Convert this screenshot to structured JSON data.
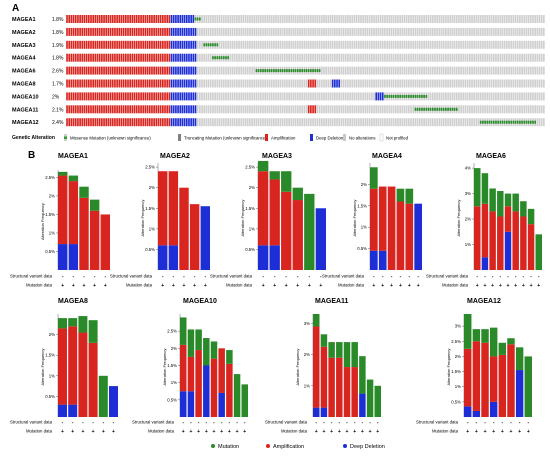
{
  "panel_a": {
    "letter": "A",
    "genes": [
      {
        "name": "MAGEA1",
        "pct": "1.8%",
        "pattern": [
          {
            "t": "amp",
            "n": 48
          },
          {
            "t": "del",
            "n": 11
          },
          {
            "t": "mut",
            "n": 3
          }
        ]
      },
      {
        "name": "MAGEA2",
        "pct": "1.8%",
        "pattern": [
          {
            "t": "amp",
            "n": 48
          },
          {
            "t": "del",
            "n": 12
          }
        ]
      },
      {
        "name": "MAGEA3",
        "pct": "1.9%",
        "pattern": [
          {
            "t": "amp",
            "n": 48
          },
          {
            "t": "del",
            "n": 12
          },
          {
            "t": "na",
            "n": 3
          },
          {
            "t": "mut",
            "n": 7
          }
        ]
      },
      {
        "name": "MAGEA4",
        "pct": "1.8%",
        "pattern": [
          {
            "t": "amp",
            "n": 48
          },
          {
            "t": "del",
            "n": 12
          },
          {
            "t": "na",
            "n": 7
          },
          {
            "t": "mut",
            "n": 8
          }
        ]
      },
      {
        "name": "MAGEA6",
        "pct": "2.6%",
        "pattern": [
          {
            "t": "amp",
            "n": 48
          },
          {
            "t": "del",
            "n": 12
          },
          {
            "t": "na",
            "n": 27
          },
          {
            "t": "mut",
            "n": 30
          }
        ]
      },
      {
        "name": "MAGEA8",
        "pct": "1.7%",
        "pattern": [
          {
            "t": "amp",
            "n": 48
          },
          {
            "t": "del",
            "n": 12
          },
          {
            "t": "na",
            "n": 51
          },
          {
            "t": "amp",
            "n": 4
          },
          {
            "t": "na",
            "n": 7
          },
          {
            "t": "del",
            "n": 4
          }
        ]
      },
      {
        "name": "MAGEA10",
        "pct": "2%",
        "pattern": [
          {
            "t": "amp",
            "n": 48
          },
          {
            "t": "del",
            "n": 12
          },
          {
            "t": "na",
            "n": 82
          },
          {
            "t": "del",
            "n": 4
          },
          {
            "t": "mut",
            "n": 20
          }
        ]
      },
      {
        "name": "MAGEA11",
        "pct": "2.1%",
        "pattern": [
          {
            "t": "amp",
            "n": 48
          },
          {
            "t": "del",
            "n": 12
          },
          {
            "t": "na",
            "n": 51
          },
          {
            "t": "amp",
            "n": 4
          },
          {
            "t": "na",
            "n": 45
          },
          {
            "t": "mut",
            "n": 20
          }
        ]
      },
      {
        "name": "MAGEA12",
        "pct": "2.4%",
        "pattern": [
          {
            "t": "amp",
            "n": 48
          },
          {
            "t": "del",
            "n": 12
          },
          {
            "t": "na",
            "n": 130
          },
          {
            "t": "mut",
            "n": 26
          }
        ]
      }
    ],
    "legend_title": "Genetic Alteration",
    "legend": [
      {
        "label": "Missense Mutation (unknown significance)",
        "color": "#2d9e2d"
      },
      {
        "label": "Truncating Mutation (unknown significance)",
        "color": "#808080"
      },
      {
        "label": "Amplification",
        "color": "#e0201f"
      },
      {
        "label": "Deep Deletion",
        "color": "#1f2fd1"
      },
      {
        "label": "No alterations",
        "color": "#c8c8c8"
      },
      {
        "label": "Not profiled",
        "color": "#ffffff"
      }
    ]
  },
  "panel_b": {
    "letter": "B",
    "ylabel": "Alteration Frequency",
    "row_labels": [
      "Structural variant data",
      "Mutation data"
    ],
    "bottom_legend": [
      {
        "label": "Mutation",
        "color": "#2a8a2a"
      },
      {
        "label": "Amplification",
        "color": "#d9251f"
      },
      {
        "label": "Deep Deletion",
        "color": "#1e2ed6"
      }
    ]
  },
  "colors": {
    "mutation": "#2a8a2a",
    "amplification": "#d9251f",
    "deletion": "#1e2ed6",
    "na": "#cfcfcf"
  },
  "chart_data": [
    {
      "type": "bar",
      "title": "MAGEA1",
      "ylim": [
        0,
        2.7
      ],
      "yticks": [
        0.5,
        1,
        1.5,
        2,
        2.5
      ],
      "bars": [
        {
          "d": 0.7,
          "a": 1.85,
          "m": 0.1
        },
        {
          "d": 0.7,
          "a": 1.7,
          "m": 0.15
        },
        {
          "d": 0,
          "a": 1.95,
          "m": 0.3
        },
        {
          "d": 0,
          "a": 1.6,
          "m": 0.3
        },
        {
          "d": 0,
          "a": 1.5,
          "m": 0
        }
      ],
      "sv": [
        "-",
        "-",
        "-",
        "-",
        "-"
      ],
      "mut": [
        "+",
        "+",
        "+",
        "+",
        "+"
      ]
    },
    {
      "type": "bar",
      "title": "MAGEA2",
      "ylim": [
        0,
        2.6
      ],
      "yticks": [
        0.5,
        1,
        1.5,
        2,
        2.5
      ],
      "bars": [
        {
          "d": 0.6,
          "a": 1.8,
          "m": 0
        },
        {
          "d": 0.6,
          "a": 1.8,
          "m": 0
        },
        {
          "d": 0,
          "a": 2.0,
          "m": 0
        },
        {
          "d": 0,
          "a": 1.6,
          "m": 0
        },
        {
          "d": 1.55,
          "a": 0,
          "m": 0
        }
      ],
      "sv": [
        "-",
        "-",
        "-",
        "-",
        "-"
      ],
      "mut": [
        "+",
        "+",
        "+",
        "+",
        "+"
      ]
    },
    {
      "type": "bar",
      "title": "MAGEA3",
      "ylim": [
        0,
        2.6
      ],
      "yticks": [
        0.5,
        1,
        1.5,
        2,
        2.5
      ],
      "bars": [
        {
          "d": 0.6,
          "a": 1.8,
          "m": 0.25
        },
        {
          "d": 0.6,
          "a": 1.6,
          "m": 0.2
        },
        {
          "d": 0,
          "a": 1.9,
          "m": 0.5
        },
        {
          "d": 0,
          "a": 1.7,
          "m": 0.3
        },
        {
          "d": 0,
          "a": 0,
          "m": 1.85
        },
        {
          "d": 1.5,
          "a": 0,
          "m": 0
        }
      ],
      "sv": [
        "-",
        "-",
        "-",
        "-",
        "-",
        "-"
      ],
      "mut": [
        "+",
        "+",
        "+",
        "+",
        "+",
        "+"
      ]
    },
    {
      "type": "bar",
      "title": "MAGEA4",
      "ylim": [
        0,
        2.5
      ],
      "yticks": [
        0.5,
        1,
        1.5,
        2
      ],
      "bars": [
        {
          "d": 0.45,
          "a": 1.45,
          "m": 0.5
        },
        {
          "d": 0.45,
          "a": 1.5,
          "m": 0
        },
        {
          "d": 0,
          "a": 1.95,
          "m": 0
        },
        {
          "d": 0,
          "a": 1.6,
          "m": 0.3
        },
        {
          "d": 0,
          "a": 1.55,
          "m": 0.35
        },
        {
          "d": 1.55,
          "a": 0,
          "m": 0
        }
      ],
      "sv": [
        "-",
        "-",
        "-",
        "-",
        "-",
        "-"
      ],
      "mut": [
        "+",
        "+",
        "+",
        "+",
        "+",
        "+"
      ]
    },
    {
      "type": "bar",
      "title": "MAGEA6",
      "ylim": [
        0,
        4.2
      ],
      "yticks": [
        1,
        2,
        3,
        4
      ],
      "bars": [
        {
          "d": 0,
          "a": 2.5,
          "m": 1.5
        },
        {
          "d": 0.5,
          "a": 2.1,
          "m": 1.2
        },
        {
          "d": 0,
          "a": 2.3,
          "m": 0.9
        },
        {
          "d": 0,
          "a": 2.1,
          "m": 1.0
        },
        {
          "d": 1.5,
          "a": 1.0,
          "m": 0.5
        },
        {
          "d": 0,
          "a": 2.3,
          "m": 0.7
        },
        {
          "d": 0,
          "a": 2.1,
          "m": 0.6
        },
        {
          "d": 0,
          "a": 1.8,
          "m": 0.6
        },
        {
          "d": 0,
          "a": 0,
          "m": 1.4
        }
      ],
      "sv": [
        "-",
        "-",
        "-",
        "-",
        "-",
        "-",
        "-",
        "-",
        "-"
      ],
      "mut": [
        "+",
        "+",
        "+",
        "+",
        "+",
        "+",
        "+",
        "+",
        "+"
      ]
    },
    {
      "type": "bar",
      "title": "MAGEA8",
      "ylim": [
        0,
        2.5
      ],
      "yticks": [
        0.5,
        1,
        1.5,
        2
      ],
      "bars": [
        {
          "d": 0.3,
          "a": 1.85,
          "m": 0.25
        },
        {
          "d": 0.3,
          "a": 1.9,
          "m": 0.2
        },
        {
          "d": 0,
          "a": 2.05,
          "m": 0.4
        },
        {
          "d": 0,
          "a": 1.8,
          "m": 0.55
        },
        {
          "d": 0,
          "a": 0,
          "m": 1.0
        },
        {
          "d": 0.75,
          "a": 0,
          "m": 0
        }
      ],
      "sv": [
        "-",
        "-",
        "-",
        "-",
        "-",
        "-"
      ],
      "mut": [
        "+",
        "+",
        "+",
        "+",
        "+",
        "+"
      ]
    },
    {
      "type": "bar",
      "title": "MAGEA10",
      "ylim": [
        0,
        3.0
      ],
      "yticks": [
        0.5,
        1,
        1.5,
        2,
        2.5
      ],
      "bars": [
        {
          "d": 0.75,
          "a": 1.35,
          "m": 0.8
        },
        {
          "d": 0.75,
          "a": 1.0,
          "m": 0.8
        },
        {
          "d": 0,
          "a": 1.95,
          "m": 0.6
        },
        {
          "d": 1.5,
          "a": 0,
          "m": 0.8
        },
        {
          "d": 0,
          "a": 1.7,
          "m": 0.5
        },
        {
          "d": 0.7,
          "a": 1.3,
          "m": 0
        },
        {
          "d": 0,
          "a": 1.55,
          "m": 0.4
        },
        {
          "d": 0,
          "a": 0,
          "m": 1.25
        },
        {
          "d": 0,
          "a": 0,
          "m": 0.95
        }
      ],
      "sv": [
        "-",
        "-",
        "-",
        "-",
        "-",
        "-",
        "-",
        "-",
        "-"
      ],
      "mut": [
        "+",
        "+",
        "+",
        "+",
        "+",
        "+",
        "+",
        "+",
        "+"
      ]
    },
    {
      "type": "bar",
      "title": "MAGEA11",
      "ylim": [
        0,
        3.3
      ],
      "yticks": [
        1,
        2,
        3
      ],
      "bars": [
        {
          "d": 0.3,
          "a": 2.6,
          "m": 0.4
        },
        {
          "d": 0.3,
          "a": 1.95,
          "m": 0.4
        },
        {
          "d": 0,
          "a": 1.9,
          "m": 0.5
        },
        {
          "d": 0,
          "a": 1.9,
          "m": 0.5
        },
        {
          "d": 0,
          "a": 1.6,
          "m": 0.8
        },
        {
          "d": 0,
          "a": 1.6,
          "m": 0.8
        },
        {
          "d": 0.75,
          "a": 0,
          "m": 1.2
        },
        {
          "d": 0,
          "a": 0,
          "m": 1.2
        },
        {
          "d": 0,
          "a": 0,
          "m": 1.0
        }
      ],
      "sv": [
        "-",
        "-",
        "-",
        "-",
        "-",
        "-",
        "-",
        "-",
        "-"
      ],
      "mut": [
        "+",
        "+",
        "+",
        "+",
        "+",
        "+",
        "+",
        "+",
        "+"
      ]
    },
    {
      "type": "bar",
      "title": "MAGEA12",
      "ylim": [
        0,
        3.4
      ],
      "yticks": [
        0.5,
        1,
        1.5,
        2,
        2.5,
        3
      ],
      "bars": [
        {
          "d": 0.35,
          "a": 1.9,
          "m": 1.15
        },
        {
          "d": 0.2,
          "a": 2.3,
          "m": 0.4
        },
        {
          "d": 0,
          "a": 2.45,
          "m": 0.45
        },
        {
          "d": 0.5,
          "a": 1.5,
          "m": 0.95
        },
        {
          "d": 0,
          "a": 2.05,
          "m": 0.4
        },
        {
          "d": 0,
          "a": 2.4,
          "m": 0.2
        },
        {
          "d": 1.55,
          "a": 0,
          "m": 0.75
        },
        {
          "d": 0,
          "a": 0,
          "m": 2.0
        }
      ],
      "sv": [
        "-",
        "-",
        "-",
        "-",
        "-",
        "-",
        "-",
        "-"
      ],
      "mut": [
        "+",
        "+",
        "+",
        "+",
        "+",
        "+",
        "+",
        "+"
      ]
    }
  ]
}
